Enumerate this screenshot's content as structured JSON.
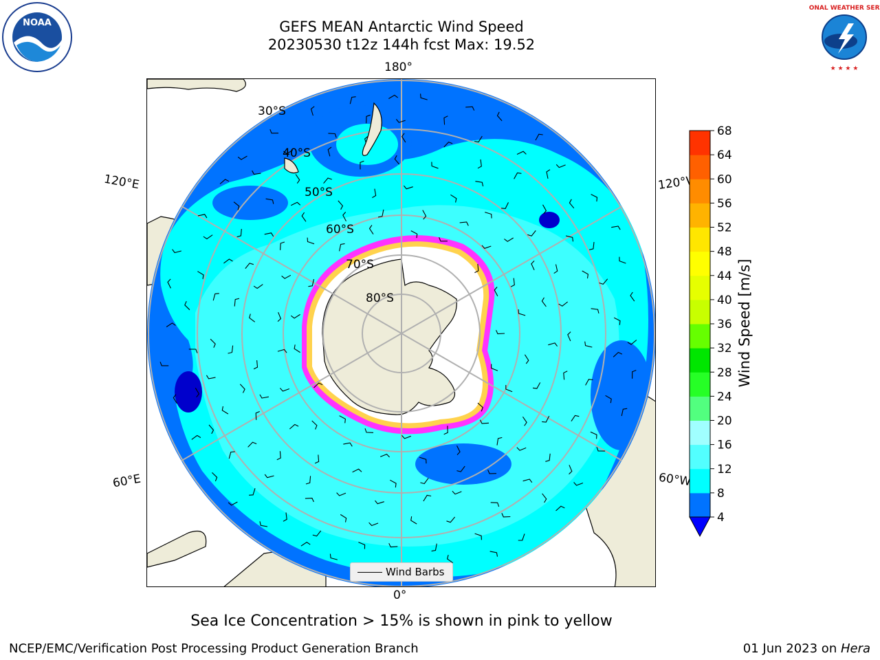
{
  "header": {
    "title_line1": "GEFS MEAN Antarctic Wind Speed",
    "title_line2": "20230530 t12z 144h fcst   Max: 19.52"
  },
  "logos": {
    "left": {
      "icon": "noaa-logo",
      "text": "NOAA"
    },
    "right": {
      "icon": "nws-logo",
      "text": "NATIONAL WEATHER SERVICE"
    }
  },
  "map": {
    "projection": "south-polar-stereographic",
    "longitude_labels": {
      "top": "180°",
      "bottom": "0°",
      "upper_left": "120°E",
      "upper_right": "120°W",
      "lower_left": "60°E",
      "lower_right": "60°W"
    },
    "latitude_labels": [
      "30°S",
      "40°S",
      "50°S",
      "60°S",
      "70°S",
      "80°S"
    ],
    "legend_label": "Wind Barbs",
    "colors": {
      "land": "#eeecd9",
      "ocean_low": "#0073ff",
      "ocean_mid": "#00ffff",
      "ocean_high": "#52ffff",
      "ice": "#ffffff",
      "ice_edge_pink": "#ff33ff",
      "ice_edge_yellow": "#ffd24d",
      "grid": "#b0b0b0"
    }
  },
  "chart_data": {
    "type": "heatmap",
    "title": "GEFS MEAN Antarctic Wind Speed",
    "max_value": 19.52,
    "colorbar": {
      "label": "Wind Speed [m/s]",
      "ticks": [
        "4",
        "8",
        "12",
        "16",
        "20",
        "24",
        "28",
        "32",
        "36",
        "40",
        "44",
        "48",
        "52",
        "56",
        "60",
        "64",
        "68"
      ],
      "levels": [
        4,
        8,
        12,
        16,
        20,
        24,
        28,
        32,
        36,
        40,
        44,
        48,
        52,
        56,
        60,
        64,
        68
      ],
      "colors": [
        "#0073ff",
        "#00ffff",
        "#52ffff",
        "#a0ffff",
        "#52ff7f",
        "#26ff26",
        "#00e600",
        "#66ff00",
        "#c8ff00",
        "#e6ff00",
        "#ffff00",
        "#ffe600",
        "#ffb300",
        "#ff8c00",
        "#ff6000",
        "#ff3300",
        "#ff0000"
      ],
      "extend": "min",
      "extend_color": "#0000ff"
    }
  },
  "note": "Sea Ice Concentration > 15% is shown in pink to yellow",
  "footer": {
    "left": "NCEP/EMC/Verification Post Processing Product Generation Branch",
    "date": "01 Jun 2023 on ",
    "machine": "Hera"
  }
}
